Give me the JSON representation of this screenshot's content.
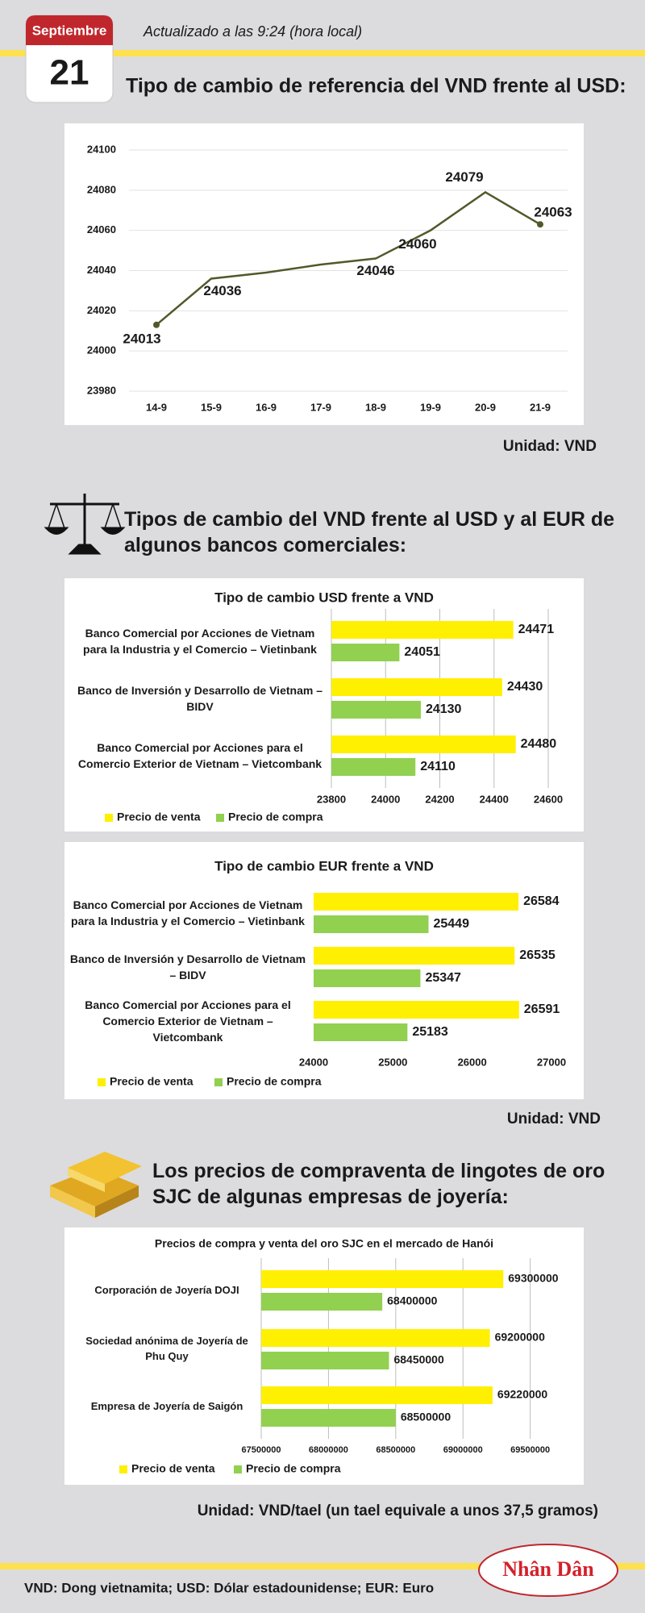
{
  "header": {
    "month": "Septiembre",
    "day": "21",
    "updated": "Actualizado a las 9:24 (hora local)"
  },
  "sections": [
    {
      "title": "Tipo de cambio de referencia del VND frente al USD:",
      "unit": "Unidad: VND"
    },
    {
      "title": "Tipos de cambio del VND frente al USD y al EUR de algunos bancos comerciales:",
      "unit": "Unidad: VND"
    },
    {
      "title": "Los precios de compraventa de lingotes de oro SJC de algunas empresas de joyería:",
      "unit": "Unidad: VND/tael (un tael equivale a unos 37,5 gramos)"
    }
  ],
  "chart_data": [
    {
      "type": "line",
      "categories": [
        "14-9",
        "15-9",
        "16-9",
        "17-9",
        "18-9",
        "19-9",
        "20-9",
        "21-9"
      ],
      "values": [
        24013,
        24036,
        24039,
        24043,
        24046,
        24060,
        24079,
        24063
      ],
      "value_labels": [
        "24013",
        "24036",
        null,
        null,
        "24046",
        "24060",
        "24079",
        "24063"
      ],
      "color": "#4f5a2a",
      "ylim": [
        23980,
        24100
      ],
      "yticks": [
        23980,
        24000,
        24020,
        24040,
        24060,
        24080,
        24100
      ],
      "grid": true
    },
    {
      "type": "hbar",
      "title": "Tipo de cambio USD frente a VND",
      "categories": [
        "Banco Comercial por Acciones de Vietnam para la Industria y el Comercio – Vietinbank",
        "Banco de Inversión y Desarrollo de Vietnam – BIDV",
        "Banco Comercial por Acciones para el Comercio Exterior de Vietnam – Vietcombank"
      ],
      "series": [
        {
          "name": "Precio de venta",
          "color": "#ffef00",
          "values": [
            24471,
            24430,
            24480
          ]
        },
        {
          "name": "Precio de compra",
          "color": "#92d050",
          "values": [
            24051,
            24130,
            24110
          ]
        }
      ],
      "xlim": [
        23800,
        24600
      ],
      "xticks": [
        23800,
        24000,
        24200,
        24400,
        24600
      ],
      "grid": true
    },
    {
      "type": "hbar",
      "title": "Tipo de cambio EUR frente a VND",
      "categories": [
        "Banco Comercial por Acciones de Vietnam para la Industria y el Comercio – Vietinbank",
        "Banco de Inversión y Desarrollo de Vietnam – BIDV",
        "Banco Comercial por Acciones para el Comercio Exterior de Vietnam – Vietcombank"
      ],
      "series": [
        {
          "name": "Precio de venta",
          "color": "#ffef00",
          "values": [
            26584,
            26535,
            26591
          ]
        },
        {
          "name": "Precio de compra",
          "color": "#92d050",
          "values": [
            25449,
            25347,
            25183
          ]
        }
      ],
      "xlim": [
        24000,
        27000
      ],
      "xticks": [
        24000,
        25000,
        26000,
        27000
      ],
      "grid": false
    },
    {
      "type": "hbar",
      "title": "Precios de compra y venta del oro SJC en el mercado de Hanói",
      "categories": [
        "Corporación de Joyería DOJI",
        "Sociedad anónima de Joyería de Phu Quy",
        "Empresa de Joyería de Saigón"
      ],
      "series": [
        {
          "name": "Precio de venta",
          "color": "#ffef00",
          "values": [
            69300000,
            69200000,
            69220000
          ]
        },
        {
          "name": "Precio de compra",
          "color": "#92d050",
          "values": [
            68400000,
            68450000,
            68500000
          ]
        }
      ],
      "xlim": [
        67500000,
        69700000
      ],
      "xticks": [
        67500000,
        68000000,
        68500000,
        69000000,
        69500000
      ],
      "grid": true
    }
  ],
  "footer": {
    "note": "VND: Dong vietnamita; USD: Dólar estadounidense; EUR: Euro",
    "logo": "Nhân Dân"
  }
}
